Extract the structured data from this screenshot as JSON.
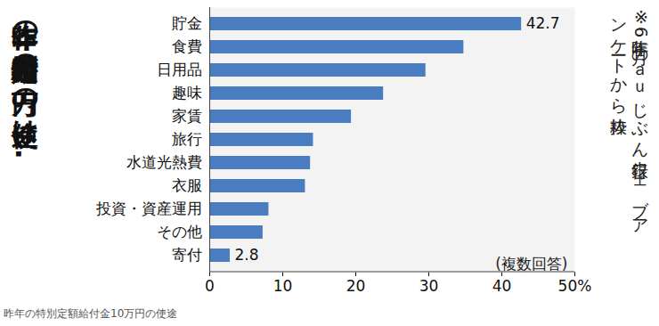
{
  "chart_data": {
    "type": "bar",
    "title": "昨年の特別定額給付金10万円の使途は…",
    "note": "※昨年6月のａｕじぶん銀行ウェブアンケートから抜粋",
    "annotation": "(複数回答)",
    "caption": "昨年の特別定額給付金10万円の使途",
    "orientation": "horizontal",
    "categories": [
      "貯金",
      "食費",
      "日用品",
      "趣味",
      "家賃",
      "旅行",
      "水道光熱費",
      "衣服",
      "投資・資産運用",
      "その他",
      "寄付"
    ],
    "values": [
      42.7,
      34.8,
      29.6,
      23.8,
      19.4,
      14.2,
      13.8,
      13.1,
      8.1,
      7.3,
      2.8
    ],
    "value_labels": [
      "42.7",
      null,
      null,
      null,
      null,
      null,
      null,
      null,
      null,
      null,
      "2.8"
    ],
    "data_labels": true,
    "color": "#4a7cc0",
    "xlim": [
      0,
      50
    ],
    "xticks": [
      0,
      10,
      20,
      30,
      40,
      {
        "value": 50,
        "label": "50%"
      }
    ],
    "grid": false
  }
}
